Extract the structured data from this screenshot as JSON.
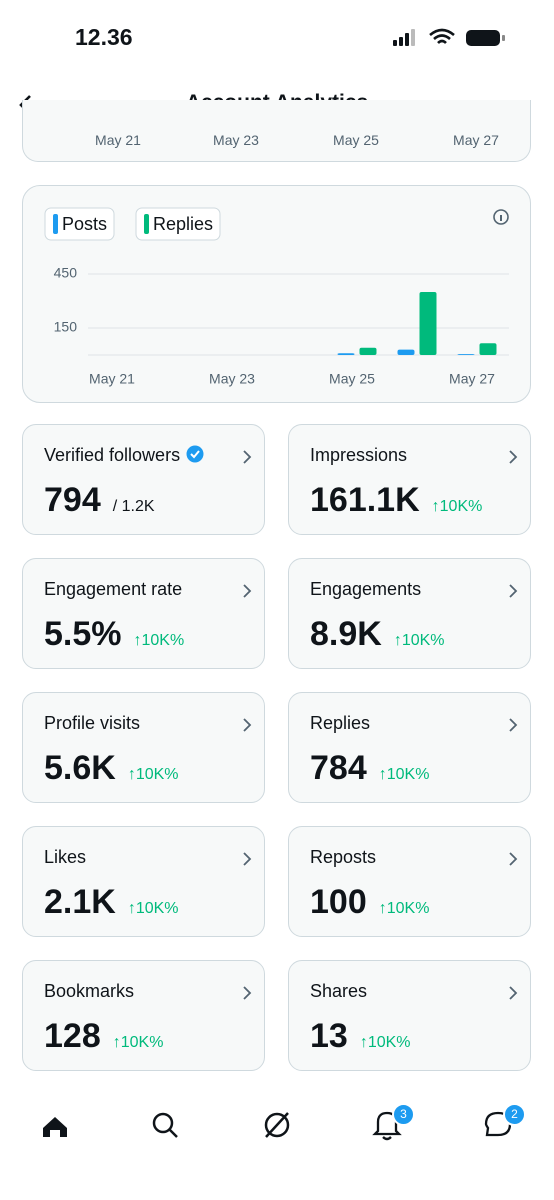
{
  "status_bar": {
    "time": "12.36"
  },
  "header": {
    "title": "Account Analytics"
  },
  "previous_chart": {
    "categories": [
      "May 21",
      "May 23",
      "May 25",
      "May 27"
    ]
  },
  "chart_data": {
    "type": "bar",
    "categories": [
      "May 21",
      null,
      "May 23",
      null,
      "May 25",
      null,
      "May 27"
    ],
    "series": [
      {
        "name": "Posts",
        "color": "#1d9bf0",
        "values": [
          0,
          0,
          0,
          0,
          10,
          30,
          5
        ]
      },
      {
        "name": "Replies",
        "color": "#00ba7c",
        "values": [
          0,
          0,
          0,
          0,
          40,
          350,
          65
        ]
      }
    ],
    "ylim": [
      0,
      480
    ],
    "yticks": [
      150,
      450
    ],
    "grid": true
  },
  "cards": [
    {
      "label": "Verified followers",
      "value": "794",
      "note": "/ 1.2K"
    },
    {
      "label": "Impressions",
      "value": "161.1K",
      "change": "↑10K%"
    },
    {
      "label": "Engagement rate",
      "value": "5.5%",
      "change": "↑10K%"
    },
    {
      "label": "Engagements",
      "value": "8.9K",
      "change": "↑10K%"
    },
    {
      "label": "Profile visits",
      "value": "5.6K",
      "change": "↑10K%"
    },
    {
      "label": "Replies",
      "value": "784",
      "change": "↑10K%"
    },
    {
      "label": "Likes",
      "value": "2.1K",
      "change": "↑10K%"
    },
    {
      "label": "Reposts",
      "value": "100",
      "change": "↑10K%"
    },
    {
      "label": "Bookmarks",
      "value": "128",
      "change": "↑10K%"
    },
    {
      "label": "Shares",
      "value": "13",
      "change": "↑10K%"
    }
  ],
  "nav": {
    "notifications_badge": "3",
    "messages_badge": "2"
  }
}
